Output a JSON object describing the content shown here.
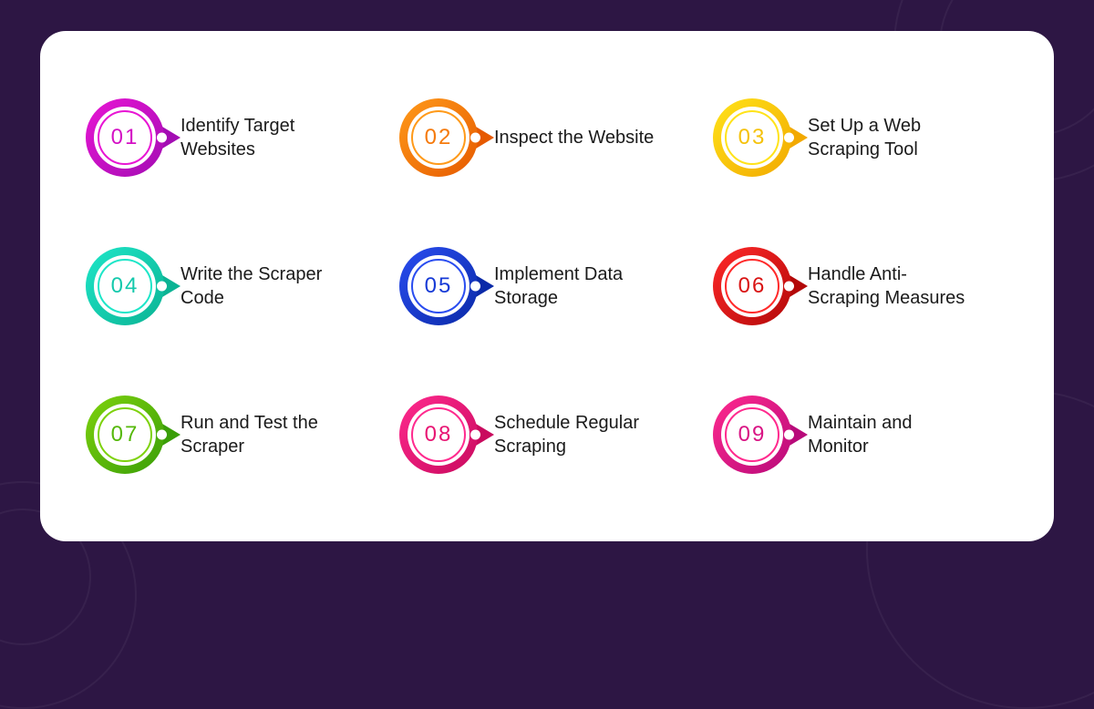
{
  "background_color": "#2d1644",
  "card": {
    "background_color": "#ffffff",
    "border_radius": 28
  },
  "label_fontsize": 20,
  "num_fontsize": 24,
  "label_color": "#1a1a1a",
  "steps": [
    {
      "num": "01",
      "label": "Identify Target Websites",
      "grad_a": "#e815d4",
      "grad_b": "#a30db3",
      "num_color": "#d411c5"
    },
    {
      "num": "02",
      "label": "Inspect the Website",
      "grad_a": "#ff9a1a",
      "grad_b": "#e65a00",
      "num_color": "#f57a0c"
    },
    {
      "num": "03",
      "label": "Set Up a Web Scraping Tool",
      "grad_a": "#ffe31a",
      "grad_b": "#f2a900",
      "num_color": "#f5c20c"
    },
    {
      "num": "04",
      "label": "Write the Scraper Code",
      "grad_a": "#1ee6c8",
      "grad_b": "#0bb394",
      "num_color": "#14c9ac"
    },
    {
      "num": "05",
      "label": "Implement Data Storage",
      "grad_a": "#2a4df0",
      "grad_b": "#0a2aa8",
      "num_color": "#163ad6"
    },
    {
      "num": "06",
      "label": "Handle Anti-Scraping Measures",
      "grad_a": "#ff2a2a",
      "grad_b": "#b30808",
      "num_color": "#d91414"
    },
    {
      "num": "07",
      "label": "Run and Test the Scraper",
      "grad_a": "#7ed20d",
      "grad_b": "#3a9e08",
      "num_color": "#55b80a"
    },
    {
      "num": "08",
      "label": "Schedule Regular Scraping",
      "grad_a": "#ff2a8e",
      "grad_b": "#c90a5e",
      "num_color": "#e81573"
    },
    {
      "num": "09",
      "label": "Maintain and Monitor",
      "grad_a": "#ff2a8e",
      "grad_b": "#b80a7a",
      "num_color": "#d91484"
    }
  ]
}
